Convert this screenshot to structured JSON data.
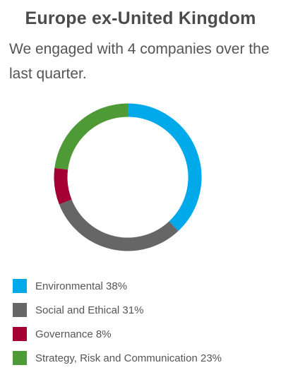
{
  "header": {
    "title": "Europe ex-United Kingdom",
    "subtitle": "We engaged with 4 companies over the last quarter."
  },
  "chart_data": {
    "type": "pie",
    "variant": "donut",
    "categories": [
      "Environmental",
      "Social and Ethical",
      "Governance",
      "Strategy, Risk and Communication"
    ],
    "values": [
      38,
      31,
      8,
      23
    ],
    "unit": "%",
    "colors": [
      "#00a9ea",
      "#666666",
      "#a50034",
      "#4e9a36"
    ],
    "legend_labels": [
      "Environmental 38%",
      "Social and Ethical 31%",
      "Governance 8%",
      "Strategy, Risk and Communication 23%"
    ],
    "legend_position": "bottom-left"
  }
}
